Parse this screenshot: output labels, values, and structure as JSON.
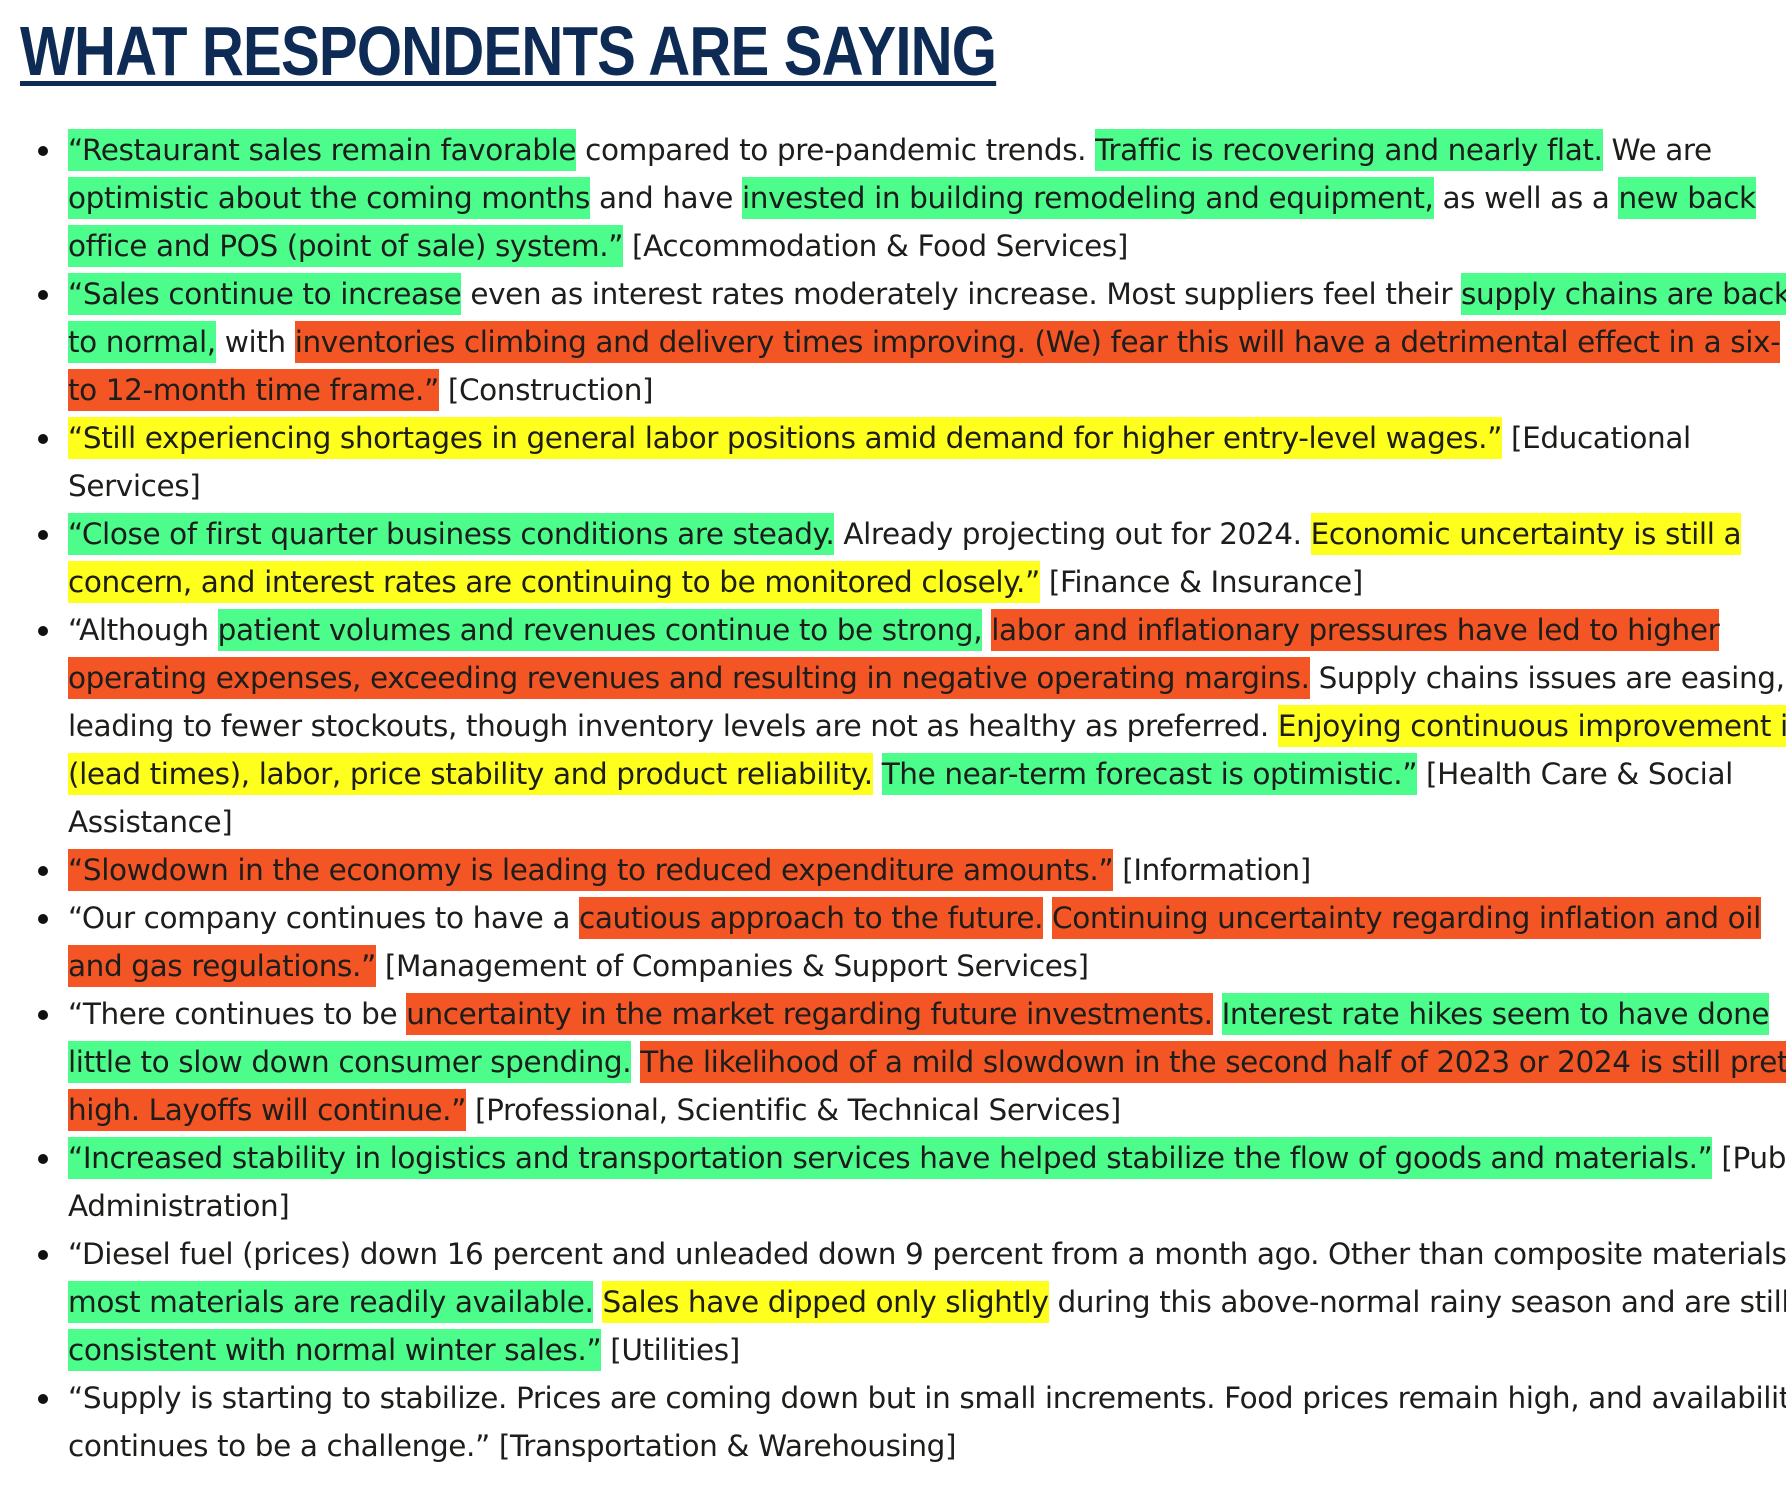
{
  "title": "WHAT RESPONDENTS ARE SAYING",
  "colors": {
    "title": "#0d2b54",
    "positive_green": "#4cfd8c",
    "neutral_yellow": "#ffff1e",
    "negative_red": "#f45524",
    "text": "#1d1d1b"
  },
  "quotes": [
    {
      "segments": [
        {
          "text": "“Restaurant sales remain favorable",
          "tone": "green"
        },
        {
          "text": " compared to pre-pandemic trends. ",
          "tone": "plain"
        },
        {
          "text": "Traffic is recovering and nearly flat.",
          "tone": "green"
        },
        {
          "text": " We are ",
          "tone": "plain"
        },
        {
          "text": "optimistic about the coming months",
          "tone": "green"
        },
        {
          "text": " and have ",
          "tone": "plain"
        },
        {
          "text": "invested in building remodeling and equipment,",
          "tone": "green"
        },
        {
          "text": " as well as a ",
          "tone": "plain"
        },
        {
          "text": "new back office and POS (point of sale) system.”",
          "tone": "green"
        },
        {
          "text": " [Accommodation & Food Services]",
          "tone": "plain"
        }
      ]
    },
    {
      "segments": [
        {
          "text": "“Sales continue to increase",
          "tone": "green"
        },
        {
          "text": " even as interest rates moderately increase. Most suppliers feel their ",
          "tone": "plain"
        },
        {
          "text": "supply chains are back to normal,",
          "tone": "green"
        },
        {
          "text": " with ",
          "tone": "plain"
        },
        {
          "text": "inventories climbing and delivery times improving. (We) fear this will have a detrimental effect in a six- to 12-month time frame.”",
          "tone": "red"
        },
        {
          "text": " [Construction]",
          "tone": "plain"
        }
      ]
    },
    {
      "segments": [
        {
          "text": "“Still experiencing shortages in general labor positions amid demand for higher entry-level wages.”",
          "tone": "yellow"
        },
        {
          "text": " [Educational Services]",
          "tone": "plain"
        }
      ]
    },
    {
      "segments": [
        {
          "text": "“Close of first quarter business conditions are steady.",
          "tone": "green"
        },
        {
          "text": " Already projecting out for 2024. ",
          "tone": "plain"
        },
        {
          "text": "Economic uncertainty is still a concern, and interest rates are continuing to be monitored closely.”",
          "tone": "yellow"
        },
        {
          "text": " [Finance & Insurance]",
          "tone": "plain"
        }
      ]
    },
    {
      "segments": [
        {
          "text": "“Although ",
          "tone": "plain"
        },
        {
          "text": "patient volumes and revenues continue to be strong,",
          "tone": "green"
        },
        {
          "text": " ",
          "tone": "plain"
        },
        {
          "text": "labor and inflationary pressures have led to higher operating expenses, exceeding revenues and resulting in negative operating margins.",
          "tone": "red"
        },
        {
          "text": " Supply chains issues are easing, leading to fewer stockouts, though inventory levels are not as healthy as preferred. ",
          "tone": "plain"
        },
        {
          "text": "Enjoying continuous improvement in (lead times), labor, price stability and product reliability.",
          "tone": "yellow"
        },
        {
          "text": " ",
          "tone": "plain"
        },
        {
          "text": "The near-term forecast is optimistic.”",
          "tone": "green"
        },
        {
          "text": " [Health Care & Social Assistance]",
          "tone": "plain"
        }
      ]
    },
    {
      "segments": [
        {
          "text": "“Slowdown in the economy is leading to reduced expenditure amounts.”",
          "tone": "red"
        },
        {
          "text": " [Information]",
          "tone": "plain"
        }
      ]
    },
    {
      "segments": [
        {
          "text": "“Our company continues to have a ",
          "tone": "plain"
        },
        {
          "text": "cautious approach to the future.",
          "tone": "red"
        },
        {
          "text": " ",
          "tone": "plain"
        },
        {
          "text": "Continuing uncertainty regarding inflation and oil and gas regulations.”",
          "tone": "red"
        },
        {
          "text": " [Management of Companies & Support Services]",
          "tone": "plain"
        }
      ]
    },
    {
      "segments": [
        {
          "text": "“There continues to be ",
          "tone": "plain"
        },
        {
          "text": "uncertainty in the market regarding future investments.",
          "tone": "red"
        },
        {
          "text": " ",
          "tone": "plain"
        },
        {
          "text": "Interest rate hikes seem to have done little to slow down consumer spending.",
          "tone": "green"
        },
        {
          "text": " ",
          "tone": "plain"
        },
        {
          "text": "The likelihood of a mild slowdown in the second half of 2023 or 2024 is still pretty high. Layoffs will continue.”",
          "tone": "red"
        },
        {
          "text": " [Professional, Scientific & Technical Services]",
          "tone": "plain"
        }
      ]
    },
    {
      "segments": [
        {
          "text": "“Increased stability in logistics and transportation services have helped stabilize the flow of goods and materials.”",
          "tone": "green"
        },
        {
          "text": " [Public Administration]",
          "tone": "plain"
        }
      ]
    },
    {
      "segments": [
        {
          "text": "“Diesel fuel (prices) down 16 percent and unleaded down 9 percent from a month ago. Other than composite materials, ",
          "tone": "plain"
        },
        {
          "text": "most materials are readily available.",
          "tone": "green"
        },
        {
          "text": " ",
          "tone": "plain"
        },
        {
          "text": "Sales have dipped only slightly",
          "tone": "yellow"
        },
        {
          "text": " during this above-normal rainy season and are still ",
          "tone": "plain"
        },
        {
          "text": "consistent with normal winter sales.”",
          "tone": "green"
        },
        {
          "text": " [Utilities]",
          "tone": "plain"
        }
      ]
    },
    {
      "segments": [
        {
          "text": "“Supply is starting to stabilize. Prices are coming down but in small increments. Food prices remain high, and availability continues to be a challenge.”",
          "tone": "plain"
        },
        {
          "text": " [Transportation & Warehousing]",
          "tone": "plain"
        }
      ]
    }
  ]
}
